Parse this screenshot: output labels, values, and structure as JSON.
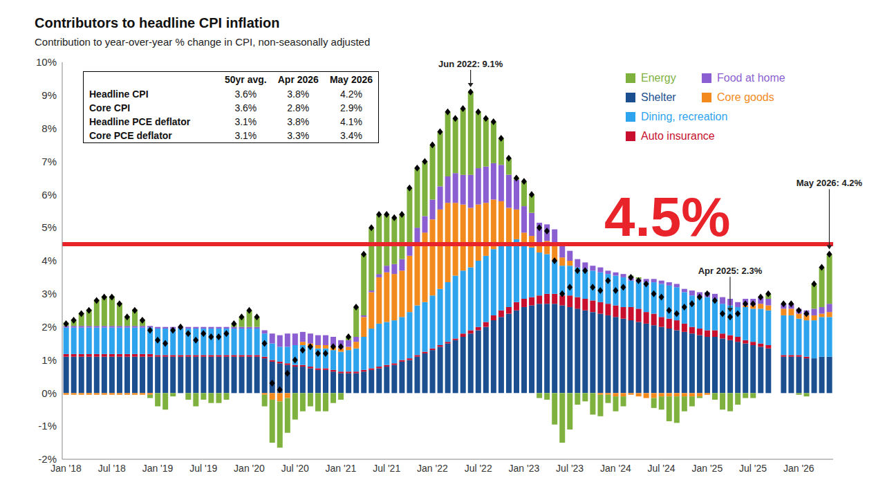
{
  "chart_data": {
    "type": "bar",
    "title": "Contributors to headline CPI inflation",
    "subtitle": "Contribution to year-over-year % change in CPI, non-seasonally adjusted",
    "stacked": true,
    "grid": false,
    "legend": "top-right",
    "categories": [
      "Jan '18",
      null,
      null,
      null,
      null,
      null,
      "Jul '18",
      null,
      null,
      null,
      null,
      null,
      "Jan '19",
      null,
      null,
      null,
      null,
      null,
      "Jul '19",
      null,
      null,
      null,
      null,
      null,
      "Jan '20",
      null,
      null,
      null,
      null,
      null,
      "Jul '20",
      null,
      null,
      null,
      null,
      null,
      "Jan '21",
      null,
      null,
      null,
      null,
      null,
      "Jul '21",
      null,
      null,
      null,
      null,
      null,
      "Jan '22",
      null,
      null,
      null,
      null,
      null,
      "Jul '22",
      null,
      null,
      null,
      null,
      null,
      "Jan '23",
      null,
      null,
      null,
      null,
      null,
      "Jul '23",
      null,
      null,
      null,
      null,
      null,
      "Jan '24",
      null,
      null,
      null,
      null,
      null,
      "Jul '24",
      null,
      null,
      null,
      null,
      null,
      "Jan '25",
      null,
      null,
      null,
      null,
      null,
      "Jul '25",
      null,
      null,
      null,
      null,
      null,
      "Jan '26",
      null,
      null,
      null,
      null
    ],
    "ylim": [
      -2,
      10
    ],
    "yticks": [
      {
        "value": -2,
        "label": "-2%"
      },
      {
        "value": -1,
        "label": "-1%"
      },
      {
        "value": 0,
        "label": "0%"
      },
      {
        "value": 1,
        "label": "1%"
      },
      {
        "value": 2,
        "label": "2%"
      },
      {
        "value": 3,
        "label": "3%"
      },
      {
        "value": 4,
        "label": "4%"
      },
      {
        "value": 5,
        "label": "5%"
      },
      {
        "value": 6,
        "label": "6%"
      },
      {
        "value": 7,
        "label": "7%"
      },
      {
        "value": 8,
        "label": "8%"
      },
      {
        "value": 9,
        "label": "9%"
      },
      {
        "value": 10,
        "label": "10%"
      }
    ],
    "series": [
      {
        "name": "Energy",
        "type": "bar",
        "color": "#7fb13f",
        "values": [
          0.1,
          0.2,
          0.4,
          0.5,
          0.8,
          0.9,
          0.9,
          0.7,
          0.3,
          0.5,
          0.2,
          -0.1,
          -0.4,
          -0.5,
          -0.1,
          0.0,
          -0.2,
          -0.4,
          -0.2,
          -0.3,
          -0.3,
          -0.2,
          0.1,
          0.3,
          0.5,
          0.3,
          -0.35,
          -1.3,
          -1.4,
          -1.05,
          -0.8,
          -0.55,
          -0.4,
          -0.55,
          -0.55,
          -0.3,
          -0.2,
          0.1,
          0.9,
          1.85,
          1.9,
          1.8,
          1.55,
          1.4,
          1.35,
          1.65,
          1.8,
          1.65,
          1.65,
          1.65,
          1.95,
          1.65,
          2.0,
          2.5,
          1.7,
          1.45,
          1.25,
          0.8,
          0.5,
          0.05,
          0.75,
          0.55,
          -0.15,
          -0.2,
          -0.95,
          -1.5,
          -1.1,
          -0.35,
          -0.25,
          -0.65,
          -0.65,
          -0.25,
          -0.45,
          -0.3,
          0.05,
          0.05,
          0.0,
          -0.3,
          -0.4,
          -0.75,
          -0.8,
          -0.45,
          -0.3,
          -0.05,
          0.0,
          -0.2,
          -0.5,
          -0.55,
          -0.35,
          -0.15,
          -0.15,
          0.0,
          0.15,
          null,
          0.0,
          0.0,
          -0.05,
          -0.1,
          0.75,
          1.2,
          1.5
        ]
      },
      {
        "name": "Food at home",
        "type": "bar",
        "color": "#8b5fd1",
        "values": [
          0.05,
          0.05,
          0.05,
          0.05,
          0.05,
          0.05,
          0.05,
          0.05,
          0.05,
          0.05,
          0.05,
          0.05,
          0.05,
          0.05,
          0.05,
          0.05,
          0.05,
          0.05,
          0.05,
          0.05,
          0.05,
          0.05,
          0.05,
          0.05,
          0.05,
          0.05,
          0.1,
          0.3,
          0.35,
          0.4,
          0.35,
          0.3,
          0.3,
          0.3,
          0.3,
          0.3,
          0.25,
          0.2,
          0.15,
          0.05,
          0.05,
          0.1,
          0.2,
          0.3,
          0.35,
          0.4,
          0.45,
          0.5,
          0.6,
          0.7,
          0.8,
          0.9,
          0.9,
          1.0,
          1.1,
          1.1,
          1.1,
          1.1,
          1.0,
          0.9,
          0.8,
          0.7,
          0.6,
          0.5,
          0.45,
          0.4,
          0.3,
          0.25,
          0.2,
          0.15,
          0.15,
          0.1,
          0.1,
          0.1,
          0.1,
          0.1,
          0.1,
          0.1,
          0.1,
          0.1,
          0.1,
          0.1,
          0.15,
          0.15,
          0.15,
          0.15,
          0.2,
          0.2,
          0.15,
          0.2,
          0.2,
          0.2,
          0.2,
          null,
          0.15,
          0.15,
          0.15,
          0.15,
          0.2,
          0.2,
          0.25
        ]
      },
      {
        "name": "Shelter",
        "type": "bar",
        "color": "#1b4f8f",
        "values": [
          1.1,
          1.1,
          1.1,
          1.1,
          1.1,
          1.1,
          1.1,
          1.1,
          1.1,
          1.1,
          1.1,
          1.1,
          1.1,
          1.1,
          1.1,
          1.1,
          1.1,
          1.1,
          1.1,
          1.1,
          1.1,
          1.1,
          1.1,
          1.1,
          1.1,
          1.1,
          1.05,
          0.95,
          0.9,
          0.85,
          0.8,
          0.8,
          0.75,
          0.7,
          0.7,
          0.65,
          0.6,
          0.6,
          0.6,
          0.65,
          0.7,
          0.75,
          0.8,
          0.85,
          0.95,
          1.0,
          1.1,
          1.2,
          1.3,
          1.4,
          1.5,
          1.6,
          1.7,
          1.8,
          1.9,
          2.0,
          2.2,
          2.3,
          2.4,
          2.5,
          2.6,
          2.65,
          2.7,
          2.7,
          2.7,
          2.65,
          2.6,
          2.55,
          2.5,
          2.45,
          2.4,
          2.35,
          2.3,
          2.25,
          2.2,
          2.15,
          2.1,
          2.05,
          2.0,
          1.95,
          1.9,
          1.85,
          1.8,
          1.75,
          1.7,
          1.7,
          1.65,
          1.6,
          1.55,
          1.5,
          1.45,
          1.4,
          1.35,
          null,
          1.1,
          1.1,
          1.1,
          1.05,
          1.05,
          1.1,
          1.1
        ]
      },
      {
        "name": "Core goods",
        "type": "bar",
        "color": "#f28a1d",
        "values": [
          -0.05,
          -0.05,
          -0.05,
          -0.05,
          -0.05,
          -0.05,
          -0.05,
          -0.05,
          -0.05,
          -0.05,
          -0.05,
          -0.05,
          0.0,
          0.0,
          0.0,
          0.0,
          0.0,
          0.0,
          0.0,
          0.0,
          0.0,
          0.0,
          0.0,
          0.0,
          0.0,
          0.0,
          -0.05,
          -0.2,
          -0.25,
          -0.15,
          0.0,
          0.1,
          0.1,
          0.1,
          0.1,
          0.1,
          0.1,
          0.1,
          0.2,
          0.6,
          1.1,
          1.4,
          1.5,
          1.4,
          1.4,
          1.7,
          1.9,
          2.1,
          2.3,
          2.4,
          2.4,
          2.2,
          2.0,
          1.8,
          1.7,
          1.6,
          1.5,
          1.3,
          1.1,
          0.9,
          0.4,
          0.35,
          0.3,
          0.4,
          0.5,
          0.25,
          0.15,
          0.0,
          0.0,
          0.0,
          -0.05,
          -0.05,
          -0.1,
          -0.1,
          -0.05,
          -0.1,
          -0.15,
          -0.15,
          -0.1,
          -0.1,
          -0.1,
          -0.1,
          -0.1,
          -0.1,
          -0.05,
          0.0,
          0.0,
          0.0,
          0.0,
          0.05,
          0.1,
          0.15,
          0.15,
          null,
          0.2,
          0.2,
          0.15,
          0.15,
          0.15,
          0.1,
          0.15
        ]
      },
      {
        "name": "Dining, recreation",
        "type": "bar",
        "color": "#2ea3ee",
        "values": [
          0.8,
          0.8,
          0.8,
          0.8,
          0.8,
          0.8,
          0.8,
          0.8,
          0.8,
          0.8,
          0.8,
          0.8,
          0.8,
          0.8,
          0.8,
          0.8,
          0.8,
          0.8,
          0.8,
          0.8,
          0.8,
          0.8,
          0.8,
          0.8,
          0.8,
          0.8,
          0.7,
          0.5,
          0.45,
          0.5,
          0.6,
          0.6,
          0.6,
          0.6,
          0.6,
          0.6,
          0.6,
          0.65,
          0.7,
          1.0,
          1.2,
          1.3,
          1.3,
          1.3,
          1.3,
          1.4,
          1.5,
          1.5,
          1.6,
          1.7,
          1.8,
          1.9,
          1.9,
          1.9,
          2.0,
          2.0,
          2.0,
          2.0,
          1.9,
          1.9,
          1.6,
          1.5,
          1.3,
          1.2,
          1.0,
          0.9,
          0.9,
          0.9,
          0.9,
          0.9,
          0.9,
          0.9,
          0.9,
          0.9,
          0.8,
          0.8,
          0.9,
          0.95,
          1.0,
          1.0,
          1.0,
          0.95,
          0.95,
          0.95,
          1.0,
          0.95,
          0.9,
          0.9,
          0.9,
          1.0,
          1.0,
          1.05,
          1.05,
          null,
          1.2,
          1.2,
          1.1,
          1.1,
          1.15,
          1.2,
          1.2
        ]
      },
      {
        "name": "Auto insurance",
        "type": "bar",
        "color": "#c8102e",
        "values": [
          0.08,
          0.08,
          0.08,
          0.08,
          0.08,
          0.08,
          0.08,
          0.08,
          0.08,
          0.08,
          0.08,
          0.08,
          0.05,
          0.05,
          0.05,
          0.05,
          0.05,
          0.05,
          0.05,
          0.05,
          0.05,
          0.05,
          0.05,
          0.05,
          0.05,
          0.05,
          0.05,
          0.05,
          0.05,
          0.05,
          0.05,
          0.05,
          0.05,
          0.05,
          0.05,
          0.05,
          0.05,
          0.05,
          0.05,
          0.05,
          0.05,
          0.05,
          0.05,
          0.05,
          0.05,
          0.05,
          0.05,
          0.05,
          0.05,
          0.05,
          0.05,
          0.05,
          0.1,
          0.1,
          0.1,
          0.15,
          0.15,
          0.2,
          0.2,
          0.25,
          0.25,
          0.25,
          0.25,
          0.3,
          0.3,
          0.3,
          0.35,
          0.35,
          0.35,
          0.35,
          0.35,
          0.35,
          0.35,
          0.35,
          0.4,
          0.4,
          0.35,
          0.35,
          0.3,
          0.3,
          0.3,
          0.25,
          0.2,
          0.2,
          0.2,
          0.2,
          0.15,
          0.15,
          0.15,
          0.1,
          0.1,
          0.1,
          0.1,
          null,
          0.05,
          0.05,
          0.05,
          0.05,
          0.0,
          0.0,
          0.0
        ]
      },
      {
        "name": "Headline CPI",
        "type": "line",
        "color": "#000000",
        "marker": "diamond",
        "line_style": "none",
        "values": [
          2.1,
          2.2,
          2.4,
          2.5,
          2.8,
          2.9,
          2.9,
          2.7,
          2.3,
          2.5,
          2.2,
          1.9,
          1.6,
          1.5,
          1.9,
          2.0,
          1.8,
          1.6,
          1.8,
          1.7,
          1.7,
          1.8,
          2.1,
          2.3,
          2.5,
          2.3,
          1.5,
          0.3,
          0.1,
          0.6,
          1.0,
          1.3,
          1.4,
          1.2,
          1.2,
          1.4,
          1.4,
          1.7,
          2.6,
          4.2,
          5.0,
          5.4,
          5.4,
          5.3,
          5.4,
          6.2,
          6.8,
          7.0,
          7.5,
          7.9,
          8.5,
          8.3,
          8.6,
          9.1,
          8.5,
          8.3,
          8.2,
          7.7,
          7.1,
          6.5,
          6.4,
          6.0,
          5.0,
          4.9,
          4.0,
          3.0,
          3.2,
          3.7,
          3.7,
          3.2,
          3.1,
          3.4,
          3.1,
          3.2,
          3.5,
          3.4,
          3.3,
          3.0,
          2.9,
          2.5,
          2.4,
          2.6,
          2.7,
          2.9,
          3.0,
          2.8,
          2.4,
          2.3,
          2.4,
          2.7,
          2.7,
          2.9,
          3.0,
          null,
          2.7,
          2.7,
          2.5,
          2.4,
          3.3,
          3.8,
          4.2
        ]
      }
    ],
    "annotations": [
      {
        "text": "Jun 2022: 9.1%",
        "x": 53,
        "y": 9.1
      },
      {
        "text": "Apr 2025: 2.3%",
        "x": 87,
        "y": 2.3
      },
      {
        "text": "May 2026: 4.2%",
        "x": 100,
        "y": 4.2
      },
      {
        "text": "4.5%",
        "y": 4.5,
        "color": "#e8232a"
      }
    ],
    "table": {
      "columns": [
        "50yr avg.",
        "Apr 2026",
        "May 2026"
      ],
      "rows": [
        {
          "label": "Headline CPI",
          "values": [
            "3.6%",
            "3.8%",
            "4.2%"
          ]
        },
        {
          "label": "Core CPI",
          "values": [
            "3.6%",
            "2.8%",
            "2.9%"
          ]
        },
        {
          "label": "Headline PCE deflator",
          "values": [
            "3.1%",
            "3.8%",
            "4.1%"
          ]
        },
        {
          "label": "Core PCE deflator",
          "values": [
            "3.1%",
            "3.3%",
            "3.4%"
          ]
        }
      ]
    }
  }
}
